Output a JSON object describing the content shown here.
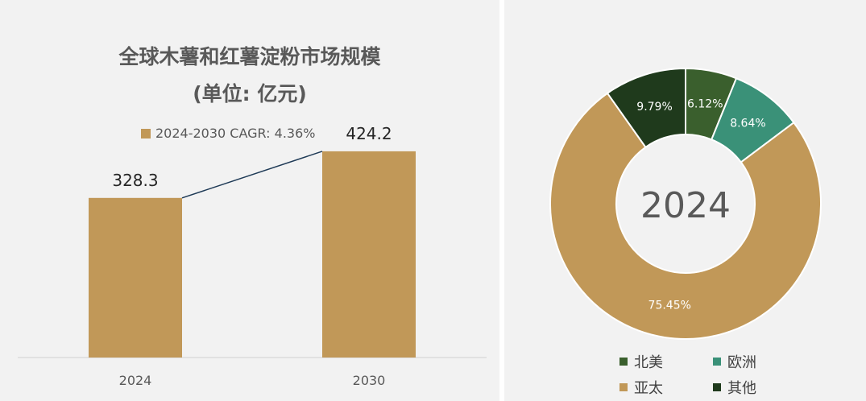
{
  "bar_chart": {
    "title_line1": "全球木薯和红薯淀粉市场规模",
    "title_line2": "(单位: 亿元)",
    "legend_label": "2024-2030 CAGR: 4.36%",
    "bar_color": "#c19858",
    "line_color": "#1f3b57"
  },
  "donut_chart": {
    "center_label": "2024"
  },
  "chart_data": [
    {
      "type": "bar",
      "title": "全球木薯和红薯淀粉市场规模 (单位: 亿元)",
      "categories": [
        "2024",
        "2030"
      ],
      "series": [
        {
          "name": "2024-2030 CAGR: 4.36%",
          "values": [
            328.3,
            424.2
          ]
        }
      ],
      "data_labels": [
        "328.3",
        "424.2"
      ],
      "ylim": [
        0,
        540
      ],
      "grid": false,
      "legend_position": "top"
    },
    {
      "type": "pie",
      "variant": "donut",
      "center_label": "2024",
      "slices": [
        {
          "label": "北美",
          "value": 6.12,
          "display": "6.12%",
          "color": "#3a5f2d"
        },
        {
          "label": "欧洲",
          "value": 8.64,
          "display": "8.64%",
          "color": "#3a9178"
        },
        {
          "label": "亚太",
          "value": 75.45,
          "display": "75.45%",
          "color": "#c19858"
        },
        {
          "label": "其他",
          "value": 9.79,
          "display": "9.79%",
          "color": "#1f3a1c"
        }
      ],
      "legend_position": "bottom"
    }
  ]
}
